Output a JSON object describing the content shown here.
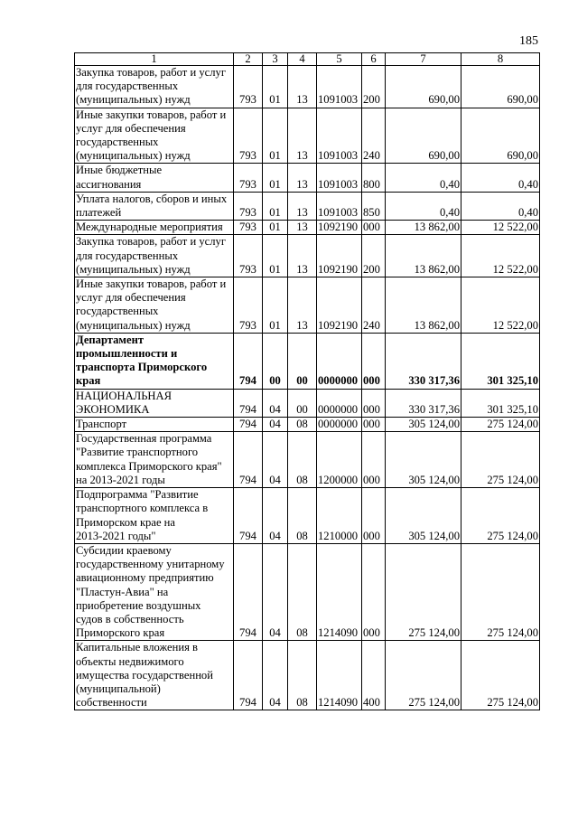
{
  "page_number": "185",
  "table": {
    "headers": [
      "1",
      "2",
      "3",
      "4",
      "5",
      "6",
      "7",
      "8"
    ],
    "rows": [
      {
        "name": "Закупка товаров, работ и услуг\nдля государственных\n(муниципальных) нужд",
        "c2": "793",
        "c3": "01",
        "c4": "13",
        "c5": "1091003",
        "c6": "200",
        "c7": "690,00",
        "c8": "690,00"
      },
      {
        "name": "Иные закупки товаров, работ и\nуслуг для обеспечения\nгосударственных\n(муниципальных) нужд",
        "c2": "793",
        "c3": "01",
        "c4": "13",
        "c5": "1091003",
        "c6": "240",
        "c7": "690,00",
        "c8": "690,00"
      },
      {
        "name": "Иные бюджетные\nассигнования",
        "c2": "793",
        "c3": "01",
        "c4": "13",
        "c5": "1091003",
        "c6": "800",
        "c7": "0,40",
        "c8": "0,40"
      },
      {
        "name": "Уплата налогов, сборов и иных\nплатежей",
        "c2": "793",
        "c3": "01",
        "c4": "13",
        "c5": "1091003",
        "c6": "850",
        "c7": "0,40",
        "c8": "0,40"
      },
      {
        "name": "Международные мероприятия",
        "c2": "793",
        "c3": "01",
        "c4": "13",
        "c5": "1092190",
        "c6": "000",
        "c7": "13 862,00",
        "c8": "12 522,00"
      },
      {
        "name": "Закупка товаров, работ и услуг\nдля государственных\n(муниципальных) нужд",
        "c2": "793",
        "c3": "01",
        "c4": "13",
        "c5": "1092190",
        "c6": "200",
        "c7": "13 862,00",
        "c8": "12 522,00"
      },
      {
        "name": "Иные закупки товаров, работ и\nуслуг для обеспечения\nгосударственных\n(муниципальных) нужд",
        "c2": "793",
        "c3": "01",
        "c4": "13",
        "c5": "1092190",
        "c6": "240",
        "c7": "13 862,00",
        "c8": "12 522,00"
      },
      {
        "name": "Департамент\nпромышленности и\nтранспорта Приморского\nкрая",
        "c2": "794",
        "c3": "00",
        "c4": "00",
        "c5": "0000000",
        "c6": "000",
        "c7": "330 317,36",
        "c8": "301 325,10",
        "bold": true
      },
      {
        "name": "НАЦИОНАЛЬНАЯ\nЭКОНОМИКА",
        "c2": "794",
        "c3": "04",
        "c4": "00",
        "c5": "0000000",
        "c6": "000",
        "c7": "330 317,36",
        "c8": "301 325,10"
      },
      {
        "name": "Транспорт",
        "c2": "794",
        "c3": "04",
        "c4": "08",
        "c5": "0000000",
        "c6": "000",
        "c7": "305 124,00",
        "c8": "275 124,00"
      },
      {
        "name": "Государственная программа\n\"Развитие транспортного\nкомплекса Приморского края\"\nна 2013-2021 годы",
        "c2": "794",
        "c3": "04",
        "c4": "08",
        "c5": "1200000",
        "c6": "000",
        "c7": "305 124,00",
        "c8": "275 124,00"
      },
      {
        "name": "Подпрограмма \"Развитие\nтранспортного комплекса в\nПриморском крае на\n2013-2021 годы\"",
        "c2": "794",
        "c3": "04",
        "c4": "08",
        "c5": "1210000",
        "c6": "000",
        "c7": "305 124,00",
        "c8": "275 124,00"
      },
      {
        "name": "Субсидии краевому\nгосударственному унитарному\nавиационному предприятию\n\"Пластун-Авиа\" на\nприобретение воздушных\nсудов в собственность\nПриморского края",
        "c2": "794",
        "c3": "04",
        "c4": "08",
        "c5": "1214090",
        "c6": "000",
        "c7": "275 124,00",
        "c8": "275 124,00"
      },
      {
        "name": "Капитальные вложения в\nобъекты недвижимого\nимущества государственной\n(муниципальной)\nсобственности",
        "c2": "794",
        "c3": "04",
        "c4": "08",
        "c5": "1214090",
        "c6": "400",
        "c7": "275 124,00",
        "c8": "275 124,00"
      }
    ]
  }
}
